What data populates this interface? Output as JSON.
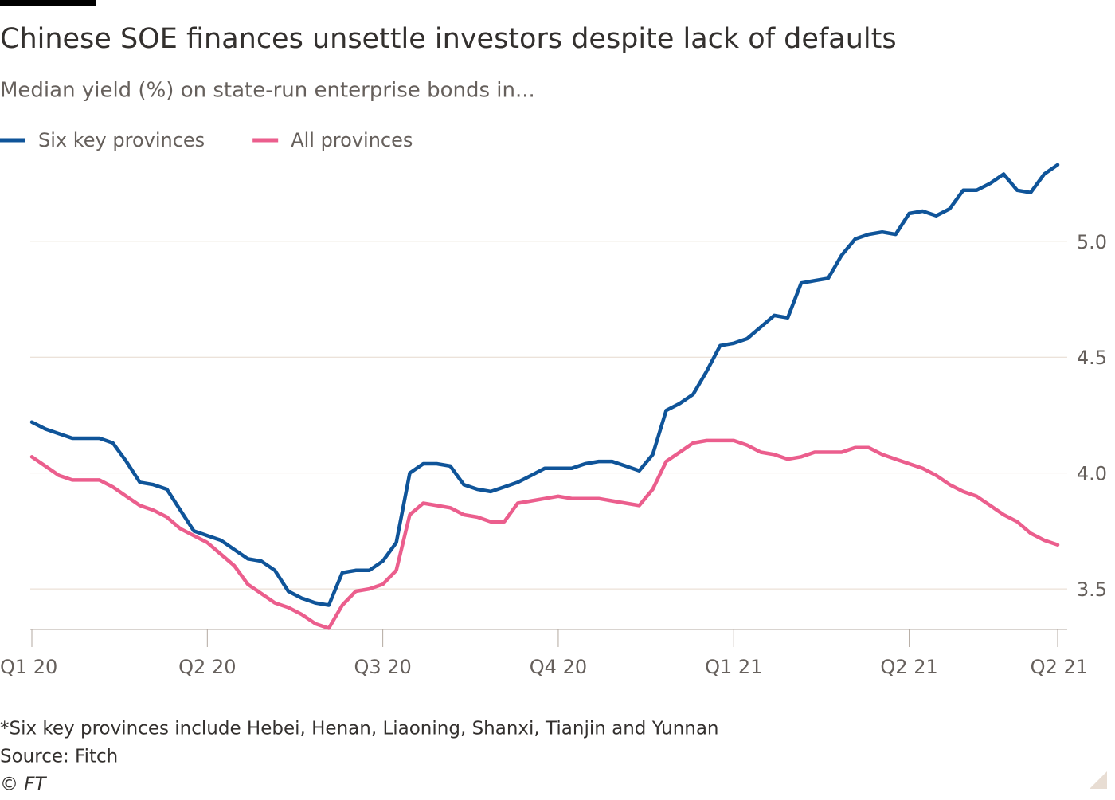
{
  "chart_data": {
    "type": "line",
    "title": "Chinese SOE finances unsettle investors despite lack of defaults",
    "subtitle": "Median yield (%) on state-run enterprise bonds in...",
    "footnote": "*Six key provinces include Hebei, Henan, Liaoning, Shanxi, Tianjin and Yunnan",
    "source": "Source: Fitch",
    "credit": "© FT",
    "categories": [
      "Q1 20",
      null,
      null,
      null,
      null,
      null,
      null,
      null,
      null,
      null,
      null,
      null,
      null,
      "Q2 20",
      null,
      null,
      null,
      null,
      null,
      null,
      null,
      null,
      null,
      null,
      null,
      null,
      "Q3 20",
      null,
      null,
      null,
      null,
      null,
      null,
      null,
      null,
      null,
      null,
      null,
      null,
      "Q4 20",
      null,
      null,
      null,
      null,
      null,
      null,
      null,
      null,
      null,
      null,
      null,
      null,
      "Q1 21",
      null,
      null,
      null,
      null,
      null,
      null,
      null,
      null,
      null,
      null,
      null,
      null,
      "Q2 21",
      null,
      null,
      null,
      null,
      null,
      null,
      null,
      null,
      null,
      null,
      "Q2 21"
    ],
    "series": [
      {
        "name": "Six key provinces",
        "color": "#0f5499",
        "values": [
          4.22,
          4.19,
          4.17,
          4.15,
          4.15,
          4.15,
          4.13,
          4.05,
          3.96,
          3.95,
          3.93,
          3.84,
          3.75,
          3.73,
          3.71,
          3.67,
          3.63,
          3.62,
          3.58,
          3.49,
          3.46,
          3.44,
          3.43,
          3.57,
          3.58,
          3.58,
          3.62,
          3.7,
          4.0,
          4.04,
          4.04,
          4.03,
          3.95,
          3.93,
          3.92,
          3.94,
          3.96,
          3.99,
          4.02,
          4.02,
          4.02,
          4.04,
          4.05,
          4.05,
          4.03,
          4.01,
          4.08,
          4.27,
          4.3,
          4.34,
          4.44,
          4.55,
          4.56,
          4.58,
          4.63,
          4.68,
          4.67,
          4.82,
          4.83,
          4.84,
          4.94,
          5.01,
          5.03,
          5.04,
          5.03,
          5.12,
          5.13,
          5.11,
          5.14,
          5.22,
          5.22,
          5.25,
          5.29,
          5.22,
          5.21,
          5.29,
          5.33
        ]
      },
      {
        "name": "All provinces",
        "color": "#eb5e8d",
        "values": [
          4.07,
          4.03,
          3.99,
          3.97,
          3.97,
          3.97,
          3.94,
          3.9,
          3.86,
          3.84,
          3.81,
          3.76,
          3.73,
          3.7,
          3.65,
          3.6,
          3.52,
          3.48,
          3.44,
          3.42,
          3.39,
          3.35,
          3.33,
          3.43,
          3.49,
          3.5,
          3.52,
          3.58,
          3.82,
          3.87,
          3.86,
          3.85,
          3.82,
          3.81,
          3.79,
          3.79,
          3.87,
          3.88,
          3.89,
          3.9,
          3.89,
          3.89,
          3.89,
          3.88,
          3.87,
          3.86,
          3.93,
          4.05,
          4.09,
          4.13,
          4.14,
          4.14,
          4.14,
          4.12,
          4.09,
          4.08,
          4.06,
          4.07,
          4.09,
          4.09,
          4.09,
          4.11,
          4.11,
          4.08,
          4.06,
          4.04,
          4.02,
          3.99,
          3.95,
          3.92,
          3.9,
          3.86,
          3.82,
          3.79,
          3.74,
          3.71,
          3.69
        ]
      }
    ],
    "ylim": [
      3.325,
      5.35
    ],
    "yticks": [
      3.5,
      {
        "value": 4,
        "label": "4.0"
      },
      4.5,
      {
        "value": 5,
        "label": "5.0"
      }
    ],
    "grid": true
  }
}
